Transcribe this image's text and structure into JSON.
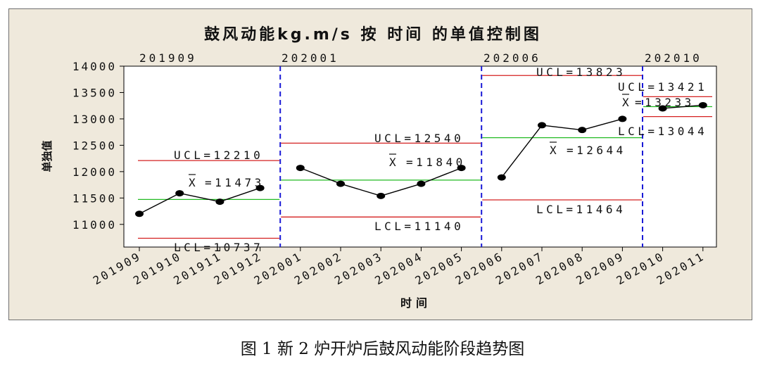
{
  "chart_data": {
    "type": "line",
    "title": "鼓风动能kg.m/s 按 时间 的单值控制图",
    "xlabel": "时间",
    "ylabel": "单独值",
    "categories": [
      "201909",
      "201910",
      "201911",
      "201912",
      "202001",
      "202002",
      "202003",
      "202004",
      "202005",
      "202006",
      "202007",
      "202008",
      "202009",
      "202010",
      "202011"
    ],
    "values": [
      11200,
      11590,
      11430,
      11690,
      12070,
      11770,
      11540,
      11770,
      12070,
      11890,
      12880,
      12790,
      13000,
      13200,
      13260
    ],
    "ylim": [
      10570,
      14000
    ],
    "yticks": [
      11000,
      11500,
      12000,
      12500,
      13000,
      13500,
      14000
    ],
    "grid": false,
    "phases": [
      {
        "label": "201909",
        "start": 0,
        "end": 3,
        "ucl": 12210,
        "mean": 11473,
        "lcl": 10737,
        "ucl_text": "UCL=12210",
        "mean_text": "=11473",
        "lcl_text": "LCL=10737"
      },
      {
        "label": "202001",
        "start": 4,
        "end": 8,
        "ucl": 12540,
        "mean": 11840,
        "lcl": 11140,
        "ucl_text": "UCL=12540",
        "mean_text": "=11840",
        "lcl_text": "LCL=11140"
      },
      {
        "label": "202006",
        "start": 9,
        "end": 12,
        "ucl": 13823,
        "mean": 12644,
        "lcl": 11464,
        "ucl_text": "UCL=13823",
        "mean_text": "=12644",
        "lcl_text": "LCL=11464"
      },
      {
        "label": "202010",
        "start": 13,
        "end": 14,
        "ucl": 13421,
        "mean": 13233,
        "lcl": 13044,
        "ucl_text": "UCL=13421",
        "mean_text": "=13233",
        "lcl_text": "LCL=13044"
      }
    ],
    "mean_symbol": "X",
    "colors": {
      "ucl_lcl": "#d42020",
      "mean": "#22bb22",
      "divider": "#1a1ad6",
      "series": "#000000"
    }
  },
  "caption": "图 1 新 2 炉开炉后鼓风动能阶段趋势图"
}
